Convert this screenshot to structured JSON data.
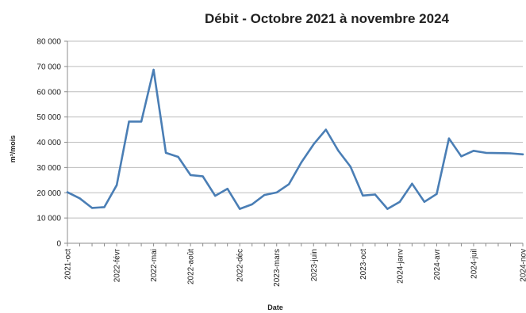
{
  "chart_data": {
    "type": "line",
    "title": "Débit - Octobre 2021 à novembre 2024",
    "xlabel": "Date",
    "ylabel": "m³/mois",
    "ylim": [
      0,
      80000
    ],
    "yticks": [
      "0",
      "10 000",
      "20 000",
      "30 000",
      "40 000",
      "50 000",
      "60 000",
      "70 000",
      "80 000"
    ],
    "grid": true,
    "legend": "none",
    "line_color": "#4a7eb5",
    "xtick_labels": [
      {
        "index": 0,
        "label": "2021-oct"
      },
      {
        "index": 4,
        "label": "2022-févr"
      },
      {
        "index": 7,
        "label": "2022-mai"
      },
      {
        "index": 10,
        "label": "2022-août"
      },
      {
        "index": 14,
        "label": "2022-déc"
      },
      {
        "index": 17,
        "label": "2023-mars"
      },
      {
        "index": 20,
        "label": "2023-juin"
      },
      {
        "index": 24,
        "label": "2023-oct"
      },
      {
        "index": 27,
        "label": "2024-janv"
      },
      {
        "index": 30,
        "label": "2024-avr"
      },
      {
        "index": 33,
        "label": "2024-juil"
      },
      {
        "index": 37,
        "label": "2024-nov"
      }
    ],
    "series": [
      {
        "x": [
          "2021-10",
          "2021-11",
          "2021-12",
          "2022-01",
          "2022-02",
          "2022-03",
          "2022-04",
          "2022-05",
          "2022-06",
          "2022-07",
          "2022-08",
          "2022-09",
          "2022-10",
          "2022-11",
          "2022-12",
          "2023-01",
          "2023-02",
          "2023-03",
          "2023-04",
          "2023-05",
          "2023-06",
          "2023-07",
          "2023-08",
          "2023-09",
          "2023-10",
          "2023-11",
          "2023-12",
          "2024-01",
          "2024-02",
          "2024-03",
          "2024-04",
          "2024-05",
          "2024-06",
          "2024-07",
          "2024-08",
          "2024-09",
          "2024-10",
          "2024-11"
        ],
        "values": [
          20200,
          17800,
          14000,
          14300,
          23000,
          48200,
          48200,
          68700,
          35800,
          34200,
          27000,
          26500,
          18800,
          21600,
          13600,
          15400,
          19100,
          20100,
          23400,
          32000,
          39200,
          45000,
          36700,
          30300,
          18900,
          19300,
          13600,
          16400,
          23600,
          16400,
          19500,
          41500,
          34400,
          36600,
          35800,
          35700,
          35600,
          35200
        ]
      }
    ]
  }
}
